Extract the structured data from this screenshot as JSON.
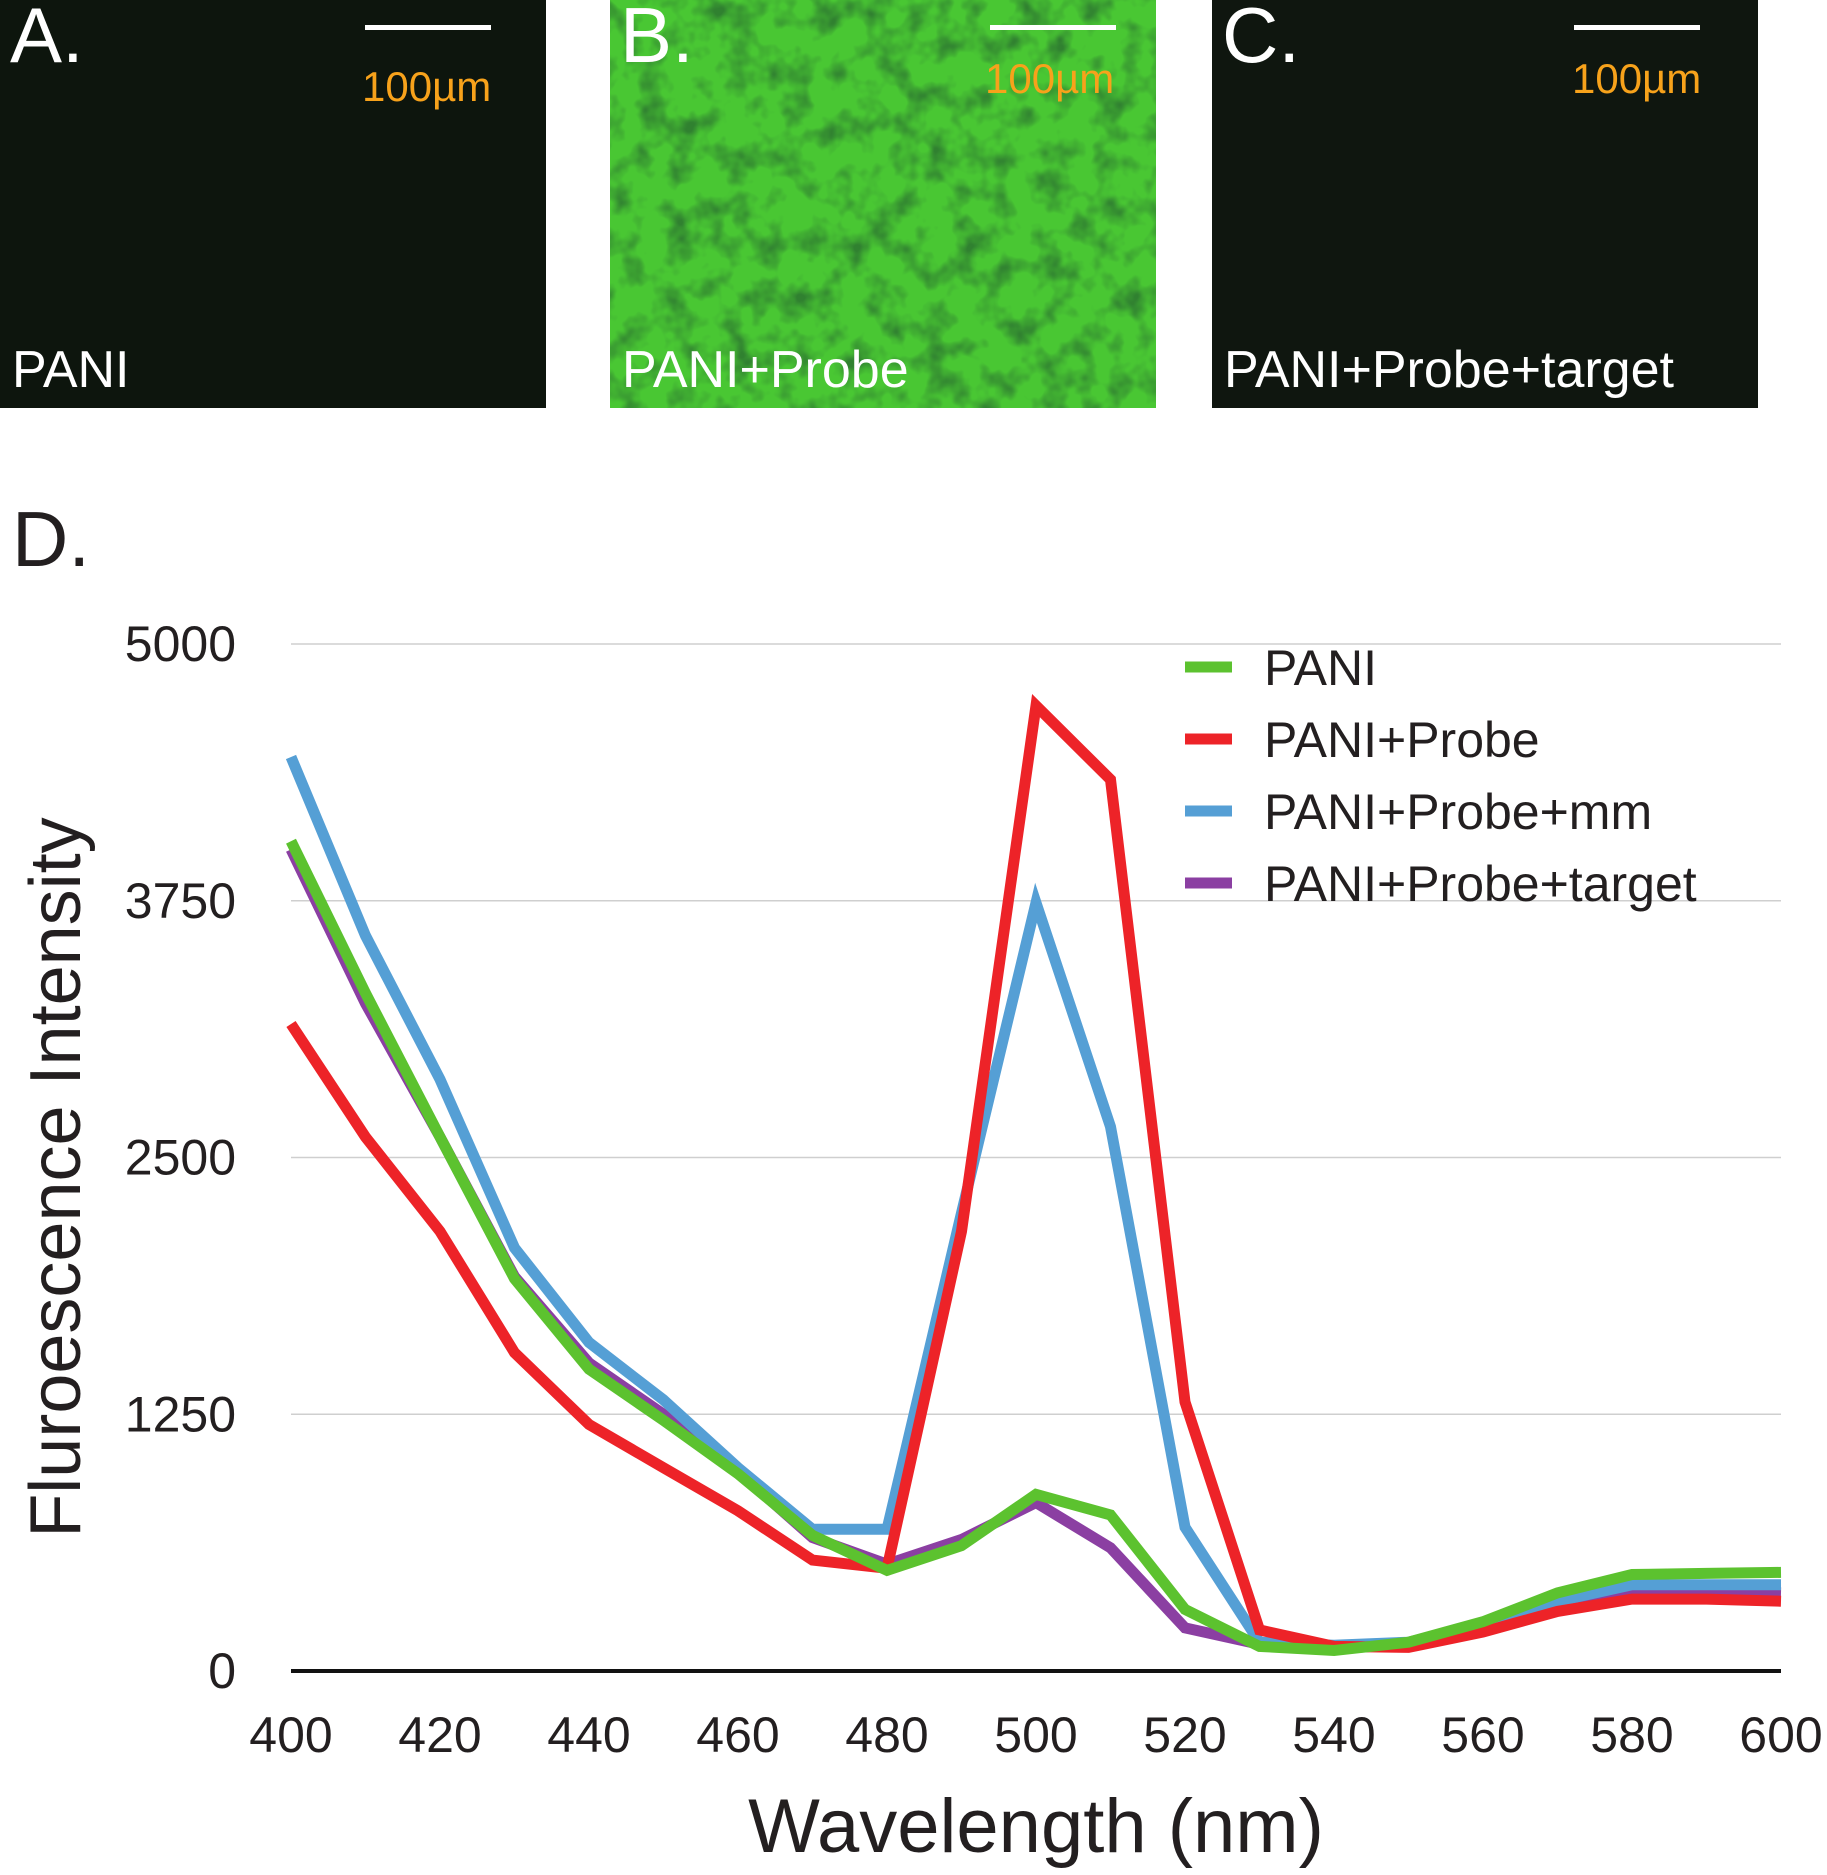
{
  "panels": [
    {
      "letter": "A.",
      "scale_label": "100µm",
      "caption": "PANI",
      "color": "#0d150d"
    },
    {
      "letter": "B.",
      "scale_label": "100µm",
      "caption": "PANI+Probe",
      "color": "#49c733"
    },
    {
      "letter": "C.",
      "scale_label": "100µm",
      "caption": "PANI+Probe+target",
      "color": "#0f160f"
    }
  ],
  "chart_label": "D.",
  "chart_data": {
    "type": "line",
    "title": "",
    "xlabel": "Wavelength (nm)",
    "ylabel": "Fluroescence Intensity",
    "xlim": [
      400,
      600
    ],
    "ylim": [
      0,
      5000
    ],
    "xticks": [
      "400",
      "420",
      "440",
      "460",
      "480",
      "500",
      "520",
      "540",
      "560",
      "580",
      "600"
    ],
    "yticks": [
      "0",
      "1250",
      "2500",
      "3750",
      "5000"
    ],
    "grid": "horizontal",
    "legend_position": "top-right",
    "x": [
      400,
      410,
      420,
      430,
      440,
      450,
      460,
      470,
      480,
      490,
      500,
      510,
      520,
      530,
      540,
      550,
      560,
      570,
      580,
      590,
      600
    ],
    "series": [
      {
        "name": "PANI+Probe+target",
        "color": "#8b3fa2",
        "values": [
          4000,
          3250,
          2600,
          1920,
          1500,
          1250,
          970,
          650,
          520,
          640,
          820,
          600,
          210,
          130,
          105,
          135,
          220,
          330,
          390,
          390,
          380
        ]
      },
      {
        "name": "PANI+Probe+mm",
        "color": "#559fd5",
        "values": [
          4450,
          3580,
          2880,
          2060,
          1600,
          1320,
          990,
          690,
          690,
          2230,
          3740,
          2650,
          700,
          140,
          125,
          140,
          230,
          340,
          420,
          420,
          420
        ]
      },
      {
        "name": "PANI+Probe",
        "color": "#ed2328",
        "values": [
          3150,
          2600,
          2140,
          1550,
          1200,
          990,
          780,
          540,
          500,
          2140,
          4700,
          4340,
          1310,
          200,
          120,
          115,
          190,
          290,
          350,
          350,
          340
        ]
      },
      {
        "name": "PANI",
        "color": "#5cc22f",
        "values": [
          4040,
          3300,
          2600,
          1910,
          1470,
          1220,
          960,
          660,
          490,
          610,
          860,
          760,
          300,
          120,
          100,
          140,
          240,
          380,
          470,
          475,
          480
        ]
      }
    ],
    "legend_order": [
      "PANI",
      "PANI+Probe",
      "PANI+Probe+mm",
      "PANI+Probe+target"
    ]
  }
}
